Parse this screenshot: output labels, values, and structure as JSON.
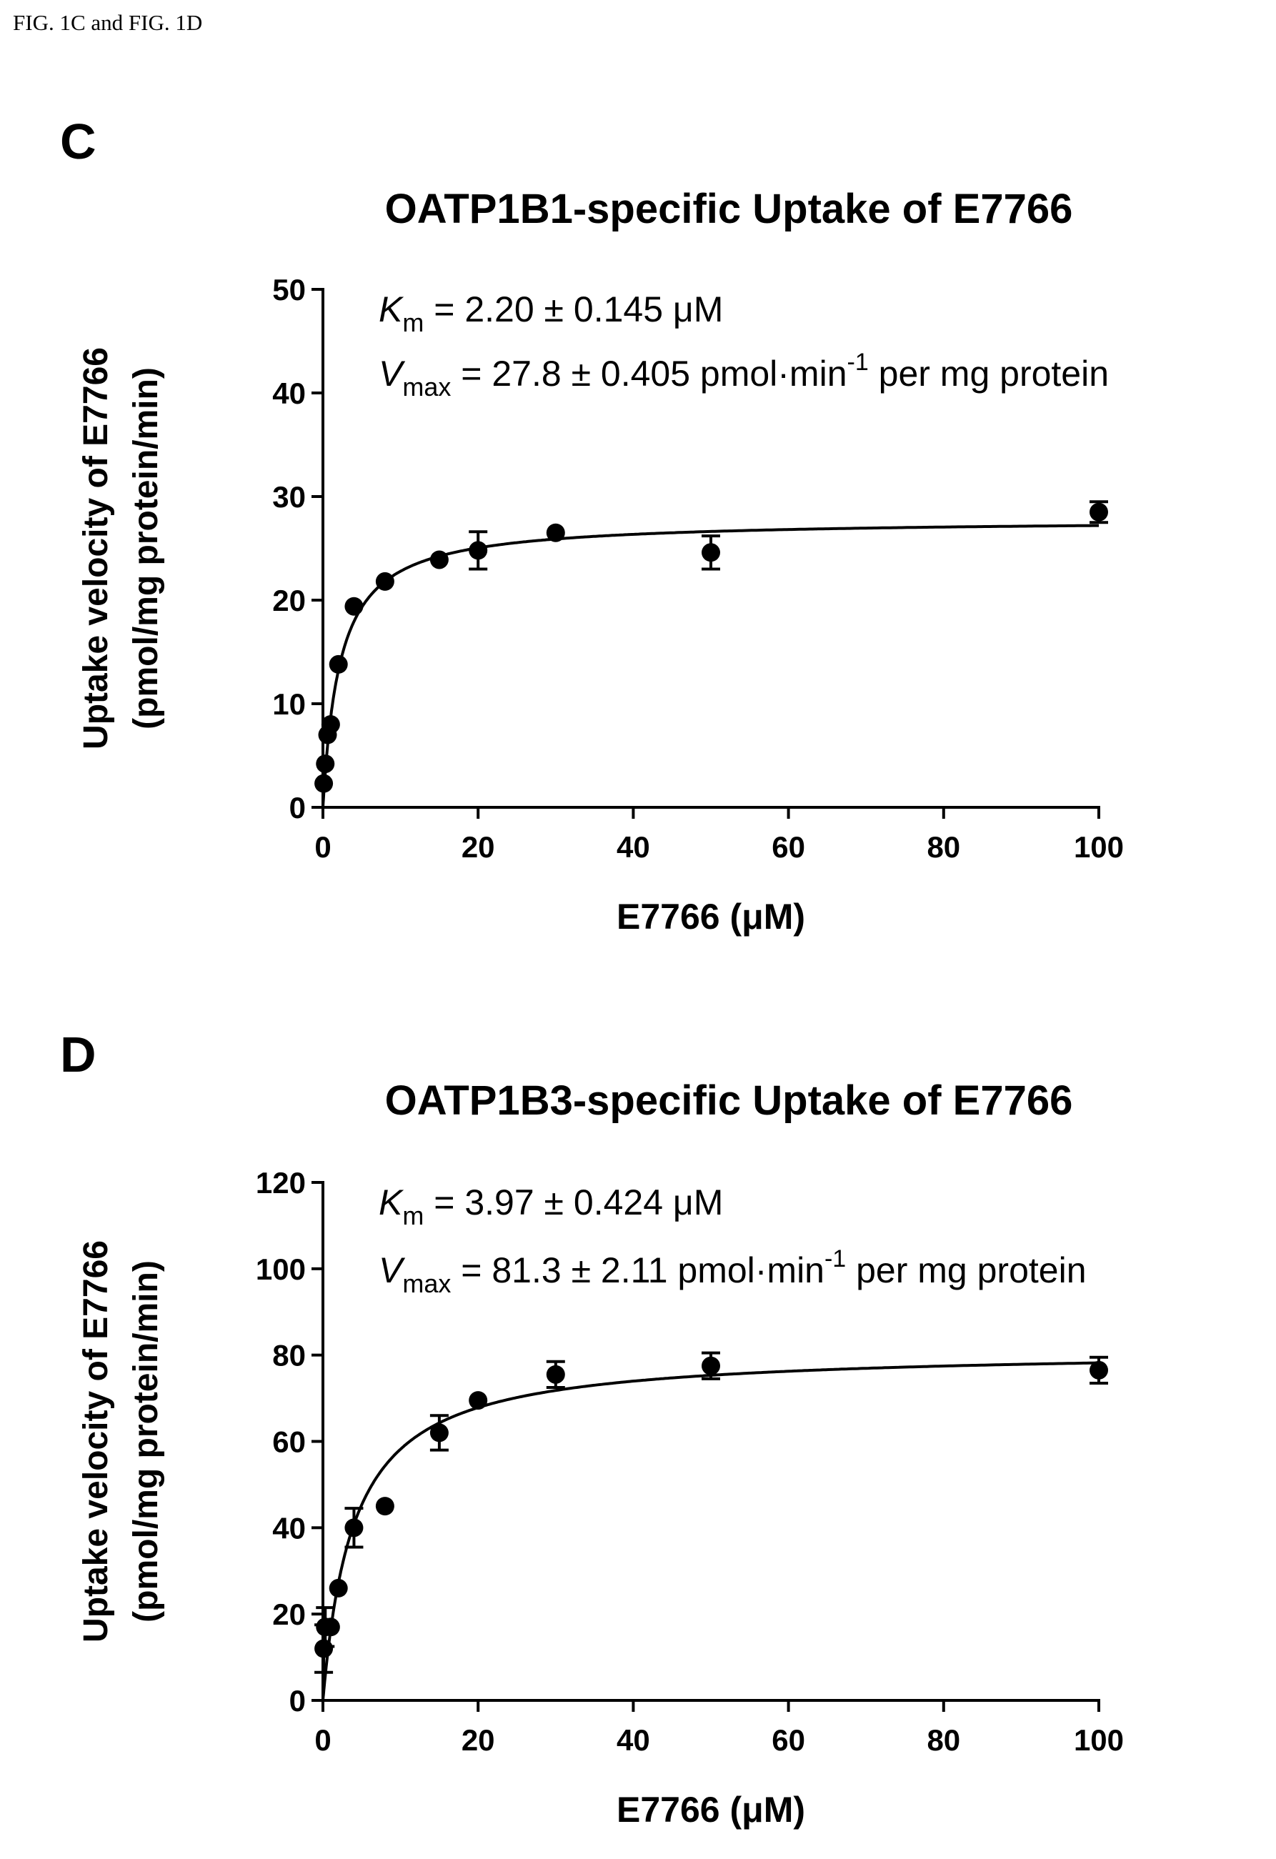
{
  "header": "FIG. 1C and FIG. 1D",
  "chart_data": [
    {
      "panel": "C",
      "type": "scatter",
      "title": "OATP1B1-specific Uptake of E7766",
      "xlabel": "E7766 (μM)",
      "ylabel": [
        "Uptake velocity of E7766",
        "(pmol/mg protein/min)"
      ],
      "xlim": [
        0,
        100
      ],
      "ylim": [
        0,
        50
      ],
      "xticks": [
        0,
        20,
        40,
        60,
        80,
        100
      ],
      "yticks": [
        0,
        10,
        20,
        30,
        40,
        50
      ],
      "annotations": [
        {
          "italic": "K",
          "sub": "m",
          "text": " = 2.20 ± 0.145 μM",
          "sup": "",
          "tail": ""
        },
        {
          "italic": "V",
          "sub": "max",
          "text": " = 27.8 ± 0.405 pmol·min",
          "sup": "-1",
          "tail": " per mg protein"
        }
      ],
      "points": [
        {
          "x": 0.1,
          "y": 2.3,
          "err": 0.0
        },
        {
          "x": 0.3,
          "y": 4.2,
          "err": 0.0
        },
        {
          "x": 0.6,
          "y": 7.0,
          "err": 0.0
        },
        {
          "x": 1.0,
          "y": 8.0,
          "err": 0.0
        },
        {
          "x": 2.0,
          "y": 13.8,
          "err": 0.0
        },
        {
          "x": 4.0,
          "y": 19.4,
          "err": 0.0
        },
        {
          "x": 8.0,
          "y": 21.8,
          "err": 0.0
        },
        {
          "x": 15.0,
          "y": 23.9,
          "err": 0.0
        },
        {
          "x": 20.0,
          "y": 24.8,
          "err": 1.8
        },
        {
          "x": 30.0,
          "y": 26.5,
          "err": 0.0
        },
        {
          "x": 50.0,
          "y": 24.6,
          "err": 1.6
        },
        {
          "x": 100.0,
          "y": 28.5,
          "err": 1.0
        }
      ],
      "fit": {
        "model": "Michaelis-Menten",
        "Km": 2.2,
        "Vmax": 27.8
      }
    },
    {
      "panel": "D",
      "type": "scatter",
      "title": "OATP1B3-specific Uptake of E7766",
      "xlabel": "E7766 (μM)",
      "ylabel": [
        "Uptake velocity of E7766",
        "(pmol/mg protein/min)"
      ],
      "xlim": [
        0,
        100
      ],
      "ylim": [
        0,
        120
      ],
      "xticks": [
        0,
        20,
        40,
        60,
        80,
        100
      ],
      "yticks": [
        0,
        20,
        40,
        60,
        80,
        100,
        120
      ],
      "annotations": [
        {
          "italic": "K",
          "sub": "m",
          "text": " = 3.97 ± 0.424 μM",
          "sup": "",
          "tail": ""
        },
        {
          "italic": "V",
          "sub": "max",
          "text": " = 81.3 ± 2.11 pmol·min",
          "sup": "-1",
          "tail": " per mg protein"
        }
      ],
      "points": [
        {
          "x": 0.1,
          "y": 12.0,
          "err": 5.5
        },
        {
          "x": 0.3,
          "y": 17.0,
          "err": 4.5
        },
        {
          "x": 1.0,
          "y": 17.0,
          "err": 0.0
        },
        {
          "x": 2.0,
          "y": 26.0,
          "err": 0.0
        },
        {
          "x": 4.0,
          "y": 40.0,
          "err": 4.5
        },
        {
          "x": 8.0,
          "y": 45.0,
          "err": 0.0
        },
        {
          "x": 15.0,
          "y": 62.0,
          "err": 4.0
        },
        {
          "x": 20.0,
          "y": 69.5,
          "err": 0.0
        },
        {
          "x": 30.0,
          "y": 75.5,
          "err": 3.0
        },
        {
          "x": 50.0,
          "y": 77.5,
          "err": 3.0
        },
        {
          "x": 100.0,
          "y": 76.5,
          "err": 3.0
        }
      ],
      "fit": {
        "model": "Michaelis-Menten",
        "Km": 3.97,
        "Vmax": 81.3
      }
    }
  ]
}
